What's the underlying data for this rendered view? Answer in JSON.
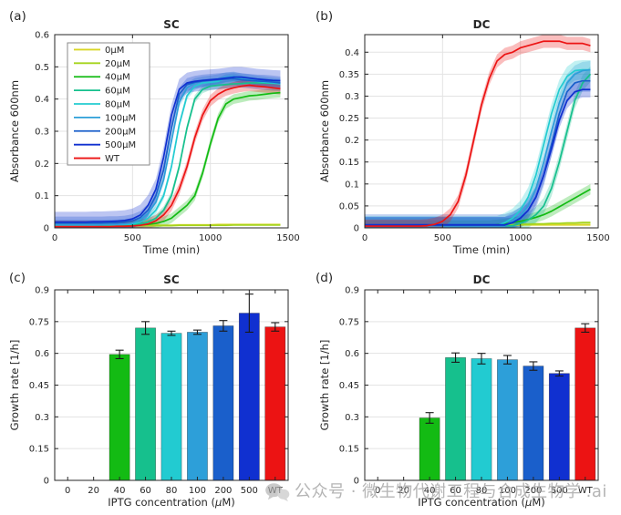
{
  "figure": {
    "background": "#ffffff"
  },
  "watermark": {
    "icon": "wechat-icon",
    "text": "公众号 · 微生物代谢工程与合成生物学",
    "tail": ".ai",
    "color": "#a8a8a8"
  },
  "chart_data": [
    {
      "id": "a",
      "type": "line",
      "panel_label": "(a)",
      "title": "SC",
      "xlabel": "Time (min)",
      "ylabel": "Absorbance 600nm",
      "xlim": [
        0,
        1500
      ],
      "ylim": [
        0,
        0.6
      ],
      "xticks": [
        0,
        500,
        1000,
        1500
      ],
      "xtick_labels": [
        "0",
        "500",
        "1000",
        "1500"
      ],
      "yticks": [
        0,
        0.1,
        0.2,
        0.3,
        0.4,
        0.5,
        0.6
      ],
      "ytick_labels": [
        "0",
        "0.1",
        "0.2",
        "0.3",
        "0.4",
        "0.5",
        "0.6"
      ],
      "grid": true,
      "legend": true,
      "legend_position": "upper-left",
      "x": [
        0,
        50,
        100,
        150,
        200,
        250,
        300,
        350,
        400,
        450,
        500,
        550,
        600,
        650,
        700,
        750,
        800,
        850,
        900,
        950,
        1000,
        1050,
        1100,
        1150,
        1200,
        1250,
        1300,
        1350,
        1400,
        1450
      ],
      "series": [
        {
          "name": "0µM",
          "color": "#d9d626",
          "band": 0.004,
          "y": [
            0.008,
            0.008,
            0.008,
            0.008,
            0.008,
            0.008,
            0.008,
            0.008,
            0.008,
            0.008,
            0.008,
            0.008,
            0.008,
            0.008,
            0.008,
            0.008,
            0.009,
            0.009,
            0.009,
            0.009,
            0.009,
            0.01,
            0.01,
            0.01,
            0.01,
            0.01,
            0.01,
            0.01,
            0.01,
            0.01
          ]
        },
        {
          "name": "20µM",
          "color": "#a5d41c",
          "band": 0.003,
          "y": [
            0.007,
            0.007,
            0.007,
            0.007,
            0.007,
            0.007,
            0.007,
            0.007,
            0.007,
            0.007,
            0.007,
            0.007,
            0.007,
            0.007,
            0.007,
            0.007,
            0.008,
            0.008,
            0.008,
            0.008,
            0.008,
            0.008,
            0.008,
            0.009,
            0.009,
            0.009,
            0.009,
            0.009,
            0.009,
            0.009
          ]
        },
        {
          "name": "40µM",
          "color": "#13bb13",
          "band": 0.015,
          "y": [
            0.006,
            0.006,
            0.006,
            0.006,
            0.006,
            0.006,
            0.006,
            0.006,
            0.007,
            0.007,
            0.008,
            0.009,
            0.011,
            0.014,
            0.02,
            0.03,
            0.05,
            0.07,
            0.1,
            0.17,
            0.26,
            0.34,
            0.385,
            0.4,
            0.405,
            0.41,
            0.412,
            0.415,
            0.418,
            0.42
          ]
        },
        {
          "name": "60µM",
          "color": "#16c08d",
          "band": 0.012,
          "y": [
            0.008,
            0.008,
            0.008,
            0.008,
            0.008,
            0.008,
            0.008,
            0.009,
            0.009,
            0.01,
            0.011,
            0.012,
            0.018,
            0.03,
            0.055,
            0.1,
            0.19,
            0.31,
            0.4,
            0.43,
            0.44,
            0.443,
            0.445,
            0.447,
            0.448,
            0.45,
            0.45,
            0.45,
            0.449,
            0.448
          ]
        },
        {
          "name": "80µM",
          "color": "#22cbd1",
          "band": 0.012,
          "y": [
            0.008,
            0.008,
            0.008,
            0.008,
            0.008,
            0.008,
            0.009,
            0.009,
            0.01,
            0.011,
            0.012,
            0.018,
            0.03,
            0.055,
            0.1,
            0.19,
            0.32,
            0.41,
            0.44,
            0.45,
            0.452,
            0.455,
            0.465,
            0.468,
            0.462,
            0.458,
            0.455,
            0.452,
            0.45,
            0.447
          ]
        },
        {
          "name": "100µM",
          "color": "#2d9fd9",
          "band": 0.015,
          "y": [
            0.01,
            0.01,
            0.01,
            0.01,
            0.01,
            0.01,
            0.01,
            0.011,
            0.011,
            0.012,
            0.015,
            0.025,
            0.045,
            0.08,
            0.15,
            0.27,
            0.39,
            0.435,
            0.45,
            0.455,
            0.458,
            0.462,
            0.468,
            0.47,
            0.465,
            0.462,
            0.458,
            0.455,
            0.452,
            0.45
          ]
        },
        {
          "name": "200µM",
          "color": "#1a5fcb",
          "band": 0.02,
          "y": [
            0.015,
            0.015,
            0.015,
            0.015,
            0.015,
            0.015,
            0.015,
            0.016,
            0.016,
            0.018,
            0.022,
            0.032,
            0.055,
            0.1,
            0.18,
            0.31,
            0.415,
            0.445,
            0.452,
            0.456,
            0.458,
            0.46,
            0.462,
            0.463,
            0.46,
            0.458,
            0.456,
            0.455,
            0.453,
            0.45
          ]
        },
        {
          "name": "500µM",
          "color": "#1030d0",
          "band": 0.032,
          "y": [
            0.018,
            0.018,
            0.018,
            0.018,
            0.018,
            0.019,
            0.019,
            0.02,
            0.021,
            0.023,
            0.028,
            0.04,
            0.07,
            0.12,
            0.22,
            0.35,
            0.43,
            0.45,
            0.455,
            0.458,
            0.46,
            0.462,
            0.465,
            0.468,
            0.468,
            0.465,
            0.462,
            0.46,
            0.458,
            0.457
          ]
        },
        {
          "name": "WT",
          "color": "#ec1313",
          "band": 0.018,
          "y": [
            0.004,
            0.004,
            0.004,
            0.004,
            0.004,
            0.004,
            0.004,
            0.004,
            0.005,
            0.005,
            0.006,
            0.008,
            0.012,
            0.022,
            0.04,
            0.07,
            0.12,
            0.19,
            0.28,
            0.35,
            0.395,
            0.415,
            0.428,
            0.435,
            0.44,
            0.443,
            0.44,
            0.438,
            0.435,
            0.432
          ]
        }
      ]
    },
    {
      "id": "b",
      "type": "line",
      "panel_label": "(b)",
      "title": "DC",
      "xlabel": "Time (min)",
      "ylabel": "Absorbance 600nm",
      "xlim": [
        0,
        1500
      ],
      "ylim": [
        0,
        0.44
      ],
      "xticks": [
        0,
        500,
        1000,
        1500
      ],
      "xtick_labels": [
        "0",
        "500",
        "1000",
        "1500"
      ],
      "yticks": [
        0,
        0.05,
        0.1,
        0.15,
        0.2,
        0.25,
        0.3,
        0.35,
        0.4
      ],
      "ytick_labels": [
        "0",
        "0.05",
        "0.1",
        "0.15",
        "0.2",
        "0.25",
        "0.3",
        "0.35",
        "0.4"
      ],
      "grid": true,
      "legend": false,
      "x": [
        0,
        50,
        100,
        150,
        200,
        250,
        300,
        350,
        400,
        450,
        500,
        550,
        600,
        650,
        700,
        750,
        800,
        850,
        900,
        950,
        1000,
        1050,
        1100,
        1150,
        1200,
        1250,
        1300,
        1350,
        1400,
        1450
      ],
      "series": [
        {
          "name": "0µM",
          "color": "#d9d626",
          "band": 0.003,
          "y": [
            0.006,
            0.006,
            0.006,
            0.006,
            0.006,
            0.006,
            0.006,
            0.006,
            0.006,
            0.006,
            0.006,
            0.006,
            0.006,
            0.006,
            0.006,
            0.006,
            0.006,
            0.006,
            0.006,
            0.006,
            0.007,
            0.007,
            0.007,
            0.007,
            0.007,
            0.007,
            0.007,
            0.007,
            0.007,
            0.007
          ]
        },
        {
          "name": "20µM",
          "color": "#a5d41c",
          "band": 0.003,
          "y": [
            0.005,
            0.005,
            0.005,
            0.005,
            0.005,
            0.005,
            0.005,
            0.005,
            0.005,
            0.005,
            0.005,
            0.005,
            0.005,
            0.005,
            0.005,
            0.006,
            0.006,
            0.006,
            0.007,
            0.007,
            0.008,
            0.008,
            0.009,
            0.009,
            0.01,
            0.01,
            0.011,
            0.011,
            0.012,
            0.012
          ]
        },
        {
          "name": "40µM",
          "color": "#13bb13",
          "band": 0.012,
          "y": [
            0.005,
            0.005,
            0.005,
            0.005,
            0.005,
            0.005,
            0.005,
            0.005,
            0.005,
            0.005,
            0.005,
            0.005,
            0.005,
            0.005,
            0.005,
            0.005,
            0.005,
            0.007,
            0.009,
            0.012,
            0.015,
            0.019,
            0.024,
            0.03,
            0.038,
            0.048,
            0.058,
            0.068,
            0.078,
            0.088
          ]
        },
        {
          "name": "60µM",
          "color": "#16c08d",
          "band": 0.018,
          "y": [
            0.005,
            0.005,
            0.005,
            0.005,
            0.005,
            0.005,
            0.005,
            0.005,
            0.005,
            0.005,
            0.005,
            0.005,
            0.005,
            0.005,
            0.005,
            0.005,
            0.005,
            0.005,
            0.005,
            0.005,
            0.01,
            0.018,
            0.03,
            0.05,
            0.09,
            0.15,
            0.22,
            0.29,
            0.33,
            0.35
          ]
        },
        {
          "name": "80µM",
          "color": "#22cbd1",
          "band": 0.022,
          "y": [
            0.005,
            0.005,
            0.005,
            0.005,
            0.005,
            0.005,
            0.005,
            0.005,
            0.005,
            0.005,
            0.005,
            0.005,
            0.005,
            0.005,
            0.005,
            0.005,
            0.005,
            0.005,
            0.012,
            0.022,
            0.04,
            0.07,
            0.12,
            0.19,
            0.26,
            0.315,
            0.345,
            0.358,
            0.36,
            0.36
          ]
        },
        {
          "name": "100µM",
          "color": "#2d9fd9",
          "band": 0.02,
          "y": [
            0.005,
            0.005,
            0.005,
            0.005,
            0.005,
            0.005,
            0.005,
            0.005,
            0.005,
            0.005,
            0.005,
            0.005,
            0.005,
            0.005,
            0.005,
            0.005,
            0.005,
            0.005,
            0.005,
            0.015,
            0.028,
            0.05,
            0.09,
            0.15,
            0.22,
            0.285,
            0.33,
            0.35,
            0.358,
            0.36
          ]
        },
        {
          "name": "200µM",
          "color": "#1a5fcb",
          "band": 0.025,
          "y": [
            0.006,
            0.006,
            0.006,
            0.006,
            0.006,
            0.006,
            0.006,
            0.006,
            0.006,
            0.006,
            0.006,
            0.006,
            0.006,
            0.006,
            0.006,
            0.006,
            0.006,
            0.006,
            0.006,
            0.012,
            0.022,
            0.04,
            0.07,
            0.12,
            0.19,
            0.26,
            0.31,
            0.33,
            0.335,
            0.335
          ]
        },
        {
          "name": "500µM",
          "color": "#1030d0",
          "band": 0.018,
          "y": [
            0.007,
            0.007,
            0.007,
            0.007,
            0.007,
            0.007,
            0.007,
            0.007,
            0.007,
            0.007,
            0.007,
            0.007,
            0.007,
            0.007,
            0.007,
            0.007,
            0.007,
            0.007,
            0.007,
            0.012,
            0.022,
            0.04,
            0.07,
            0.12,
            0.18,
            0.245,
            0.29,
            0.31,
            0.315,
            0.315
          ]
        },
        {
          "name": "WT",
          "color": "#ec1313",
          "band": 0.015,
          "y": [
            0.004,
            0.004,
            0.004,
            0.004,
            0.004,
            0.004,
            0.004,
            0.004,
            0.005,
            0.008,
            0.015,
            0.03,
            0.06,
            0.12,
            0.2,
            0.28,
            0.34,
            0.38,
            0.395,
            0.4,
            0.41,
            0.415,
            0.42,
            0.425,
            0.425,
            0.425,
            0.42,
            0.42,
            0.42,
            0.415
          ]
        }
      ]
    },
    {
      "id": "c",
      "type": "bar",
      "panel_label": "(c)",
      "title": "SC",
      "xlabel": "IPTG concentration (µM)",
      "ylabel": "Growth rate [1/h]",
      "ylim": [
        0,
        0.9
      ],
      "yticks": [
        0,
        0.15,
        0.3,
        0.45,
        0.6,
        0.75,
        0.9
      ],
      "ytick_labels": [
        "0",
        "0.15",
        "0.3",
        "0.45",
        "0.6",
        "0.75",
        "0.9"
      ],
      "grid": true,
      "categories": [
        "0",
        "20",
        "40",
        "60",
        "80",
        "100",
        "200",
        "500",
        "WT"
      ],
      "values": [
        0,
        0,
        0.595,
        0.72,
        0.695,
        0.7,
        0.73,
        0.79,
        0.725
      ],
      "errors": [
        0,
        0,
        0.02,
        0.03,
        0.01,
        0.01,
        0.025,
        0.09,
        0.02
      ],
      "colors": [
        "#d9d626",
        "#a5d41c",
        "#13bb13",
        "#16c08d",
        "#22cbd1",
        "#2d9fd9",
        "#1a5fcb",
        "#1030d0",
        "#ec1313"
      ]
    },
    {
      "id": "d",
      "type": "bar",
      "panel_label": "(d)",
      "title": "DC",
      "xlabel": "IPTG concentration (µM)",
      "ylabel": "Growth rate [1/h]",
      "ylim": [
        0,
        0.9
      ],
      "yticks": [
        0,
        0.15,
        0.3,
        0.45,
        0.6,
        0.75,
        0.9
      ],
      "ytick_labels": [
        "0",
        "0.15",
        "0.3",
        "0.45",
        "0.6",
        "0.75",
        "0.9"
      ],
      "grid": true,
      "categories": [
        "0",
        "20",
        "40",
        "60",
        "80",
        "100",
        "200",
        "500",
        "WT"
      ],
      "values": [
        0,
        0,
        0.295,
        0.58,
        0.575,
        0.57,
        0.54,
        0.505,
        0.72
      ],
      "errors": [
        0,
        0,
        0.025,
        0.022,
        0.025,
        0.02,
        0.02,
        0.012,
        0.02
      ],
      "colors": [
        "#d9d626",
        "#a5d41c",
        "#13bb13",
        "#16c08d",
        "#22cbd1",
        "#2d9fd9",
        "#1a5fcb",
        "#1030d0",
        "#ec1313"
      ]
    }
  ],
  "style": {
    "axis_color": "#262626",
    "grid_color": "#e3e3e3",
    "band_opacity": 0.28
  }
}
